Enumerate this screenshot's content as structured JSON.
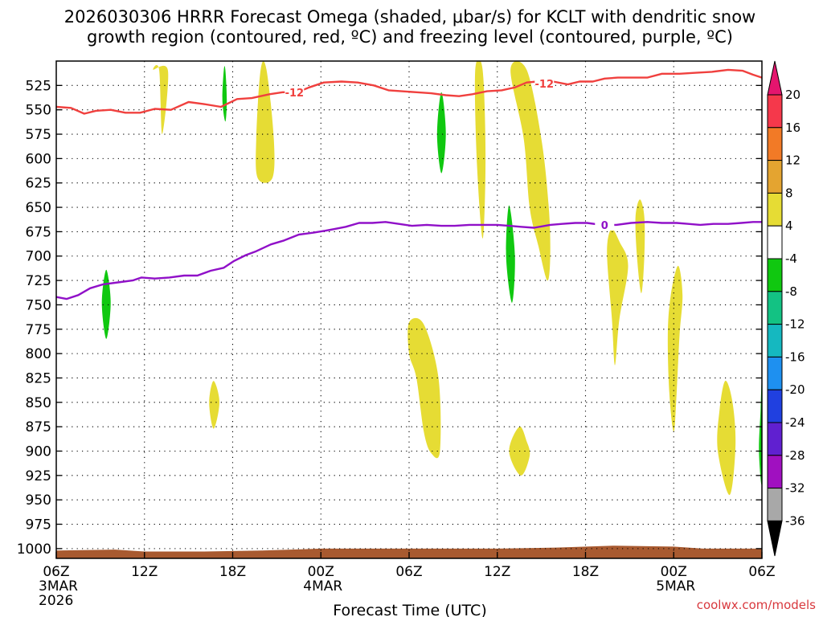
{
  "chart_data": {
    "type": "time-height cross section",
    "title_line1": "2026030306 HRRR Forecast Omega (shaded, μbar/s) for KCLT with dendritic snow",
    "title_line2": "growth region (contoured, red, ºC) and freezing level (contoured, purple, ºC)",
    "xlabel": "Forecast Time (UTC)",
    "credit": "coolwx.com/models",
    "x_range_hours": [
      0,
      48
    ],
    "y_range_hpa": [
      1010,
      500
    ],
    "y_ticks": [
      525,
      550,
      575,
      600,
      625,
      650,
      675,
      700,
      725,
      750,
      775,
      800,
      825,
      850,
      875,
      900,
      925,
      950,
      975,
      1000
    ],
    "x_ticks": [
      {
        "h": 0,
        "label": "06Z",
        "sub1": "3MAR",
        "sub2": "2026"
      },
      {
        "h": 6,
        "label": "12Z",
        "sub1": "",
        "sub2": ""
      },
      {
        "h": 12,
        "label": "18Z",
        "sub1": "",
        "sub2": ""
      },
      {
        "h": 18,
        "label": "00Z",
        "sub1": "4MAR",
        "sub2": ""
      },
      {
        "h": 24,
        "label": "06Z",
        "sub1": "",
        "sub2": ""
      },
      {
        "h": 30,
        "label": "12Z",
        "sub1": "",
        "sub2": ""
      },
      {
        "h": 36,
        "label": "18Z",
        "sub1": "",
        "sub2": ""
      },
      {
        "h": 42,
        "label": "00Z",
        "sub1": "5MAR",
        "sub2": ""
      },
      {
        "h": 48,
        "label": "06Z",
        "sub1": "",
        "sub2": ""
      }
    ],
    "colorbar": {
      "labels": [
        "20",
        "16",
        "12",
        "8",
        "4",
        "-4",
        "-8",
        "-12",
        "-16",
        "-20",
        "-24",
        "-28",
        "-32",
        "-36"
      ],
      "colors": [
        "#f5384b",
        "#f27a26",
        "#e4a430",
        "#e6dc34",
        "#ffffff",
        "#10c810",
        "#13c283",
        "#15b8c0",
        "#1e90f0",
        "#2040e0",
        "#6020d0",
        "#a010c0",
        "#a8a8a8"
      ],
      "top_color": "#e4156e",
      "bottom_color": "#000000"
    },
    "series": [
      {
        "name": "Dendritic growth region (-12 ºC)",
        "color": "#f0403e",
        "label": "-12",
        "label_points": [
          {
            "h": 16.2,
            "p": 532
          },
          {
            "h": 33.2,
            "p": 523
          }
        ],
        "points": [
          [
            0,
            547
          ],
          [
            1,
            548
          ],
          [
            1.9,
            554
          ],
          [
            2.7,
            551
          ],
          [
            3.7,
            550
          ],
          [
            4.7,
            553
          ],
          [
            5.7,
            553
          ],
          [
            6.7,
            549
          ],
          [
            7.8,
            550
          ],
          [
            9,
            542
          ],
          [
            10,
            544
          ],
          [
            11.2,
            547
          ],
          [
            12.3,
            539
          ],
          [
            13.3,
            538
          ],
          [
            14.5,
            534
          ],
          [
            15.4,
            532
          ],
          [
            16.4,
            532
          ],
          [
            17.2,
            527
          ],
          [
            18.2,
            522
          ],
          [
            19.4,
            521
          ],
          [
            20.5,
            522
          ],
          [
            21.6,
            525
          ],
          [
            22.6,
            530
          ],
          [
            23.5,
            531
          ],
          [
            24.5,
            532
          ],
          [
            25.5,
            533
          ],
          [
            26.5,
            535
          ],
          [
            27.4,
            536
          ],
          [
            28.3,
            534
          ],
          [
            29.3,
            531
          ],
          [
            30.3,
            530
          ],
          [
            31.2,
            527
          ],
          [
            32,
            522
          ],
          [
            32.7,
            521
          ],
          [
            33.8,
            521
          ],
          [
            34.8,
            524
          ],
          [
            35.6,
            521
          ],
          [
            36.5,
            521
          ],
          [
            37.3,
            518
          ],
          [
            38.2,
            517
          ],
          [
            39.3,
            517
          ],
          [
            40.2,
            517
          ],
          [
            41.2,
            513
          ],
          [
            42.4,
            513
          ],
          [
            43.5,
            512
          ],
          [
            44.6,
            511
          ],
          [
            45.7,
            509
          ],
          [
            46.7,
            510
          ],
          [
            47.4,
            514
          ],
          [
            48,
            517
          ]
        ]
      },
      {
        "name": "Freezing level (0 ºC)",
        "color": "#9010c8",
        "label": "0",
        "label_points": [
          {
            "h": 37.3,
            "p": 668
          }
        ],
        "points": [
          [
            0,
            742
          ],
          [
            0.7,
            744
          ],
          [
            1.5,
            740
          ],
          [
            2.3,
            733
          ],
          [
            3.2,
            729
          ],
          [
            4.2,
            727
          ],
          [
            5.2,
            725
          ],
          [
            5.8,
            722
          ],
          [
            6.7,
            723
          ],
          [
            7.7,
            722
          ],
          [
            8.7,
            720
          ],
          [
            9.6,
            720
          ],
          [
            10.5,
            715
          ],
          [
            11.4,
            712
          ],
          [
            12.1,
            705
          ],
          [
            12.9,
            699
          ],
          [
            13.6,
            695
          ],
          [
            14.6,
            688
          ],
          [
            15.5,
            684
          ],
          [
            16.5,
            678
          ],
          [
            17.5,
            676
          ],
          [
            18.3,
            674
          ],
          [
            19,
            672
          ],
          [
            19.7,
            670
          ],
          [
            20.6,
            666
          ],
          [
            21.5,
            666
          ],
          [
            22.4,
            665
          ],
          [
            23.3,
            667
          ],
          [
            24.2,
            669
          ],
          [
            25.2,
            668
          ],
          [
            26.2,
            669
          ],
          [
            27.1,
            669
          ],
          [
            28.1,
            668
          ],
          [
            29.1,
            668
          ],
          [
            30,
            668
          ],
          [
            30.8,
            669
          ],
          [
            31.6,
            670
          ],
          [
            32.5,
            671
          ],
          [
            33.6,
            668
          ],
          [
            34.4,
            667
          ],
          [
            35.3,
            666
          ],
          [
            36.1,
            666
          ],
          [
            37.1,
            668
          ],
          [
            38.1,
            668
          ],
          [
            39.1,
            666
          ],
          [
            40.2,
            665
          ],
          [
            41.2,
            666
          ],
          [
            42.2,
            666
          ],
          [
            43,
            667
          ],
          [
            43.8,
            668
          ],
          [
            44.7,
            667
          ],
          [
            45.7,
            667
          ],
          [
            46.6,
            666
          ],
          [
            47.4,
            665
          ],
          [
            48,
            665
          ]
        ]
      }
    ],
    "omega_regions": [
      {
        "value": "4 to 8",
        "color": "#e6dc34",
        "pts": [
          [
            6.6,
            509
          ],
          [
            7.0,
            509
          ],
          [
            7.2,
            575
          ],
          [
            7.6,
            510
          ]
        ]
      },
      {
        "value": "4 to 8",
        "color": "#e6dc34",
        "pts": [
          [
            13.9,
            509
          ],
          [
            14.3,
            509
          ],
          [
            14.8,
            580
          ],
          [
            14.7,
            620
          ],
          [
            13.7,
            620
          ],
          [
            13.6,
            580
          ]
        ]
      },
      {
        "value": "4 to 8",
        "color": "#e6dc34",
        "pts": [
          [
            28.5,
            509
          ],
          [
            29.0,
            509
          ],
          [
            29.2,
            600
          ],
          [
            29.0,
            682
          ],
          [
            28.6,
            600
          ]
        ]
      },
      {
        "value": "4 to 8",
        "color": "#e6dc34",
        "pts": [
          [
            30.9,
            509
          ],
          [
            32.0,
            509
          ],
          [
            33.0,
            580
          ],
          [
            33.5,
            650
          ],
          [
            33.6,
            700
          ],
          [
            33.4,
            725
          ],
          [
            32.8,
            690
          ],
          [
            32.2,
            650
          ],
          [
            31.8,
            580
          ]
        ]
      },
      {
        "value": "4 to 8",
        "color": "#e6dc34",
        "pts": [
          [
            37.8,
            672
          ],
          [
            38.3,
            685
          ],
          [
            38.9,
            710
          ],
          [
            38.3,
            765
          ],
          [
            38.0,
            812
          ],
          [
            37.8,
            765
          ],
          [
            37.5,
            710
          ],
          [
            37.5,
            685
          ]
        ]
      },
      {
        "value": "4 to 8",
        "color": "#e6dc34",
        "pts": [
          [
            39.7,
            642
          ],
          [
            40.0,
            660
          ],
          [
            40.0,
            700
          ],
          [
            39.8,
            738
          ],
          [
            39.5,
            700
          ],
          [
            39.4,
            660
          ]
        ]
      },
      {
        "value": "4 to 8",
        "color": "#e6dc34",
        "pts": [
          [
            42.3,
            710
          ],
          [
            42.6,
            740
          ],
          [
            42.4,
            780
          ],
          [
            42.2,
            840
          ],
          [
            42.0,
            880
          ],
          [
            41.7,
            840
          ],
          [
            41.6,
            780
          ],
          [
            41.8,
            740
          ]
        ]
      },
      {
        "value": "4 to 8",
        "color": "#e6dc34",
        "pts": [
          [
            24.0,
            768
          ],
          [
            25.0,
            770
          ],
          [
            26.0,
            825
          ],
          [
            26.1,
            900
          ],
          [
            25.5,
            902
          ],
          [
            25.0,
            880
          ],
          [
            24.5,
            825
          ],
          [
            24.0,
            800
          ]
        ]
      },
      {
        "value": "4 to 8",
        "color": "#e6dc34",
        "pts": [
          [
            10.7,
            828
          ],
          [
            11.1,
            850
          ],
          [
            10.7,
            877
          ],
          [
            10.4,
            850
          ]
        ]
      },
      {
        "value": "4 to 8",
        "color": "#e6dc34",
        "pts": [
          [
            31.5,
            875
          ],
          [
            32.0,
            890
          ],
          [
            32.2,
            905
          ],
          [
            31.6,
            925
          ],
          [
            30.8,
            900
          ]
        ]
      },
      {
        "value": "4 to 8",
        "color": "#e6dc34",
        "pts": [
          [
            45.5,
            828
          ],
          [
            46.0,
            850
          ],
          [
            46.2,
            895
          ],
          [
            45.8,
            945
          ],
          [
            45.0,
            900
          ],
          [
            45.1,
            860
          ]
        ]
      },
      {
        "value": "-4 to -8",
        "color": "#10c810",
        "pts": [
          [
            11.4,
            509
          ],
          [
            11.5,
            509
          ],
          [
            11.6,
            540
          ],
          [
            11.5,
            562
          ],
          [
            11.3,
            540
          ]
        ]
      },
      {
        "value": "-4 to -8",
        "color": "#10c810",
        "pts": [
          [
            26.2,
            532
          ],
          [
            26.5,
            575
          ],
          [
            26.2,
            615
          ],
          [
            25.9,
            575
          ]
        ]
      },
      {
        "value": "-4 to -8",
        "color": "#10c810",
        "pts": [
          [
            30.8,
            648
          ],
          [
            31.2,
            700
          ],
          [
            31.0,
            748
          ],
          [
            30.6,
            700
          ]
        ]
      },
      {
        "value": "-4 to -8",
        "color": "#10c810",
        "pts": [
          [
            3.4,
            714
          ],
          [
            3.7,
            748
          ],
          [
            3.4,
            785
          ],
          [
            3.1,
            748
          ]
        ]
      },
      {
        "value": "-4 to -8",
        "color": "#10c810",
        "pts": [
          [
            48.0,
            830
          ],
          [
            48.0,
            932
          ],
          [
            47.8,
            900
          ],
          [
            47.9,
            860
          ]
        ]
      }
    ],
    "surface_terrain": {
      "color": "#a85a30",
      "top_pressure_hpa": [
        [
          0,
          1002
        ],
        [
          4,
          1001
        ],
        [
          6,
          1003
        ],
        [
          10,
          1003
        ],
        [
          14,
          1002
        ],
        [
          18,
          1000
        ],
        [
          22,
          1000
        ],
        [
          26,
          1000
        ],
        [
          30,
          1000
        ],
        [
          34,
          999
        ],
        [
          38,
          997
        ],
        [
          42,
          998
        ],
        [
          44,
          1000
        ],
        [
          48,
          1000
        ]
      ]
    }
  }
}
